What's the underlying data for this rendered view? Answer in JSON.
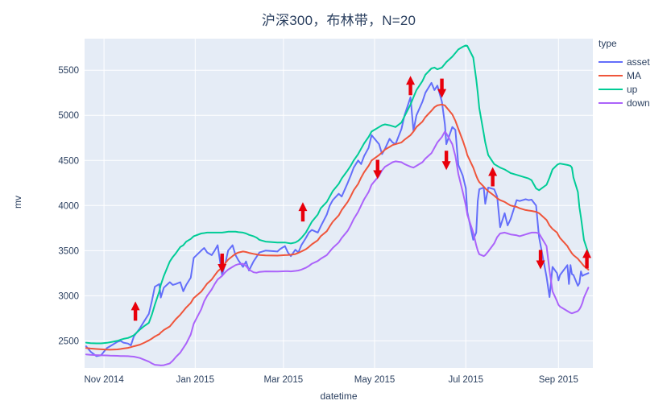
{
  "chart_data": {
    "type": "line",
    "title": "沪深300，布林带，N=20",
    "xlabel": "datetime",
    "ylabel": "mv",
    "legend_title": "type",
    "legend_position": "top-right",
    "grid": true,
    "plot_bgcolor": "#e5ecf6",
    "grid_color": "#ffffff",
    "text_color": "#2a3f5f",
    "arrow_color": "#e8000b",
    "ylim": [
      2200,
      5850
    ],
    "yticks": [
      2500,
      3000,
      3500,
      4000,
      4500,
      5000,
      5500
    ],
    "xlim": [
      "2014-10-19",
      "2015-09-24"
    ],
    "xticks": [
      {
        "date": "2014-11-01",
        "label": "Nov 2014"
      },
      {
        "date": "2015-01-01",
        "label": "Jan 2015"
      },
      {
        "date": "2015-03-01",
        "label": "Mar 2015"
      },
      {
        "date": "2015-05-01",
        "label": "May 2015"
      },
      {
        "date": "2015-07-01",
        "label": "Jul 2015"
      },
      {
        "date": "2015-09-01",
        "label": "Sep 2015"
      }
    ],
    "dates": [
      "2014-10-20",
      "2014-10-23",
      "2014-10-27",
      "2014-10-30",
      "2014-11-03",
      "2014-11-05",
      "2014-11-10",
      "2014-11-12",
      "2014-11-14",
      "2014-11-17",
      "2014-11-19",
      "2014-11-21",
      "2014-11-25",
      "2014-11-28",
      "2014-12-01",
      "2014-12-03",
      "2014-12-05",
      "2014-12-08",
      "2014-12-09",
      "2014-12-11",
      "2014-12-15",
      "2014-12-17",
      "2014-12-19",
      "2014-12-22",
      "2014-12-24",
      "2014-12-26",
      "2014-12-29",
      "2014-12-31",
      "2015-01-05",
      "2015-01-07",
      "2015-01-09",
      "2015-01-12",
      "2015-01-14",
      "2015-01-16",
      "2015-01-19",
      "2015-01-21",
      "2015-01-23",
      "2015-01-26",
      "2015-01-28",
      "2015-01-30",
      "2015-02-02",
      "2015-02-04",
      "2015-02-06",
      "2015-02-09",
      "2015-02-11",
      "2015-02-13",
      "2015-02-17",
      "2015-02-25",
      "2015-02-27",
      "2015-03-02",
      "2015-03-04",
      "2015-03-06",
      "2015-03-09",
      "2015-03-11",
      "2015-03-13",
      "2015-03-16",
      "2015-03-18",
      "2015-03-20",
      "2015-03-24",
      "2015-03-26",
      "2015-03-30",
      "2015-04-01",
      "2015-04-03",
      "2015-04-07",
      "2015-04-09",
      "2015-04-13",
      "2015-04-15",
      "2015-04-17",
      "2015-04-20",
      "2015-04-22",
      "2015-04-24",
      "2015-04-27",
      "2015-04-29",
      "2015-05-04",
      "2015-05-06",
      "2015-05-08",
      "2015-05-11",
      "2015-05-13",
      "2015-05-15",
      "2015-05-19",
      "2015-05-21",
      "2015-05-25",
      "2015-05-27",
      "2015-05-29",
      "2015-06-02",
      "2015-06-04",
      "2015-06-08",
      "2015-06-10",
      "2015-06-12",
      "2015-06-15",
      "2015-06-17",
      "2015-06-18",
      "2015-06-22",
      "2015-06-24",
      "2015-06-26",
      "2015-06-29",
      "2015-07-01",
      "2015-07-02",
      "2015-07-06",
      "2015-07-08",
      "2015-07-09",
      "2015-07-10",
      "2015-07-13",
      "2015-07-14",
      "2015-07-16",
      "2015-07-20",
      "2015-07-22",
      "2015-07-24",
      "2015-07-27",
      "2015-07-29",
      "2015-07-31",
      "2015-08-04",
      "2015-08-06",
      "2015-08-10",
      "2015-08-12",
      "2015-08-14",
      "2015-08-17",
      "2015-08-19",
      "2015-08-24",
      "2015-08-26",
      "2015-08-28",
      "2015-08-31",
      "2015-09-01",
      "2015-09-02",
      "2015-09-07",
      "2015-09-08",
      "2015-09-09",
      "2015-09-10",
      "2015-09-11",
      "2015-09-14",
      "2015-09-15",
      "2015-09-16",
      "2015-09-17",
      "2015-09-18",
      "2015-09-21"
    ],
    "series": [
      {
        "name": "asset",
        "color": "#636efa",
        "values": [
          2440,
          2380,
          2330,
          2340,
          2420,
          2440,
          2490,
          2500,
          2480,
          2470,
          2450,
          2550,
          2640,
          2720,
          2800,
          2940,
          3100,
          3130,
          2980,
          3090,
          3150,
          3120,
          3130,
          3150,
          3050,
          3120,
          3200,
          3420,
          3500,
          3530,
          3480,
          3450,
          3500,
          3560,
          3230,
          3350,
          3500,
          3560,
          3450,
          3390,
          3320,
          3380,
          3280,
          3380,
          3430,
          3480,
          3500,
          3490,
          3520,
          3550,
          3480,
          3440,
          3510,
          3480,
          3560,
          3640,
          3700,
          3730,
          3700,
          3770,
          3900,
          4000,
          4060,
          4130,
          4100,
          4250,
          4330,
          4420,
          4500,
          4460,
          4550,
          4640,
          4780,
          4680,
          4570,
          4630,
          4740,
          4700,
          4680,
          4850,
          5000,
          5200,
          4830,
          5000,
          5150,
          5250,
          5360,
          5280,
          5330,
          5150,
          4900,
          4680,
          4870,
          4840,
          4450,
          4330,
          4190,
          3930,
          3620,
          3700,
          4050,
          4180,
          4200,
          4020,
          4200,
          4180,
          4100,
          3760,
          3915,
          3780,
          3850,
          4060,
          4050,
          4070,
          4060,
          4065,
          4000,
          3650,
          3210,
          2985,
          3320,
          3250,
          3170,
          3230,
          3340,
          3130,
          3340,
          3240,
          3230,
          3110,
          3140,
          3270,
          3220,
          3230,
          3250
        ]
      },
      {
        "name": "MA",
        "color": "#ef553b",
        "values": [
          2420,
          2415,
          2410,
          2406,
          2403,
          2402,
          2405,
          2410,
          2415,
          2422,
          2430,
          2440,
          2458,
          2480,
          2505,
          2525,
          2548,
          2575,
          2592,
          2620,
          2660,
          2700,
          2740,
          2790,
          2830,
          2870,
          2920,
          2975,
          3045,
          3090,
          3135,
          3180,
          3225,
          3270,
          3315,
          3360,
          3400,
          3440,
          3465,
          3480,
          3490,
          3485,
          3475,
          3465,
          3458,
          3452,
          3448,
          3445,
          3448,
          3450,
          3452,
          3455,
          3462,
          3475,
          3490,
          3515,
          3540,
          3570,
          3615,
          3660,
          3715,
          3770,
          3820,
          3890,
          3950,
          4040,
          4100,
          4170,
          4240,
          4310,
          4370,
          4440,
          4500,
          4560,
          4590,
          4620,
          4650,
          4670,
          4680,
          4700,
          4730,
          4780,
          4820,
          4870,
          4930,
          4980,
          5050,
          5090,
          5110,
          5120,
          5110,
          5090,
          5010,
          4940,
          4850,
          4720,
          4620,
          4560,
          4420,
          4330,
          4290,
          4260,
          4210,
          4190,
          4160,
          4110,
          4080,
          4060,
          4040,
          4020,
          4000,
          3985,
          3970,
          3950,
          3945,
          3940,
          3930,
          3915,
          3840,
          3780,
          3740,
          3700,
          3670,
          3640,
          3550,
          3520,
          3495,
          3470,
          3450,
          3410,
          3390,
          3370,
          3350,
          3330,
          3290
        ]
      },
      {
        "name": "up",
        "color": "#00cc96",
        "values": [
          2480,
          2475,
          2472,
          2472,
          2478,
          2485,
          2500,
          2512,
          2522,
          2532,
          2545,
          2562,
          2625,
          2665,
          2700,
          2790,
          2900,
          3050,
          3120,
          3220,
          3380,
          3430,
          3470,
          3540,
          3560,
          3600,
          3630,
          3660,
          3690,
          3695,
          3700,
          3700,
          3700,
          3700,
          3700,
          3705,
          3710,
          3710,
          3710,
          3705,
          3700,
          3690,
          3675,
          3660,
          3645,
          3620,
          3600,
          3590,
          3590,
          3590,
          3585,
          3580,
          3590,
          3610,
          3640,
          3700,
          3760,
          3820,
          3900,
          3970,
          4040,
          4100,
          4160,
          4240,
          4300,
          4390,
          4440,
          4500,
          4570,
          4630,
          4690,
          4760,
          4820,
          4870,
          4890,
          4900,
          4890,
          4880,
          4870,
          4920,
          4990,
          5120,
          5200,
          5280,
          5380,
          5450,
          5520,
          5530,
          5510,
          5530,
          5570,
          5590,
          5650,
          5690,
          5730,
          5760,
          5775,
          5770,
          5640,
          5400,
          5250,
          5080,
          4800,
          4700,
          4560,
          4460,
          4440,
          4420,
          4400,
          4380,
          4360,
          4340,
          4330,
          4310,
          4300,
          4280,
          4190,
          4170,
          4230,
          4310,
          4400,
          4450,
          4460,
          4465,
          4450,
          4445,
          4440,
          4420,
          4310,
          4150,
          3980,
          3870,
          3750,
          3620,
          3470
        ]
      },
      {
        "name": "down",
        "color": "#ab63fa",
        "values": [
          2350,
          2345,
          2342,
          2340,
          2338,
          2336,
          2334,
          2332,
          2332,
          2330,
          2328,
          2325,
          2310,
          2290,
          2270,
          2250,
          2235,
          2230,
          2228,
          2230,
          2250,
          2280,
          2320,
          2370,
          2420,
          2470,
          2570,
          2690,
          2850,
          2940,
          3000,
          3070,
          3130,
          3180,
          3220,
          3260,
          3290,
          3320,
          3340,
          3350,
          3355,
          3330,
          3290,
          3260,
          3255,
          3265,
          3270,
          3268,
          3270,
          3272,
          3272,
          3270,
          3275,
          3280,
          3290,
          3310,
          3330,
          3355,
          3385,
          3410,
          3450,
          3490,
          3530,
          3590,
          3640,
          3720,
          3780,
          3850,
          3930,
          4000,
          4070,
          4150,
          4230,
          4330,
          4390,
          4430,
          4460,
          4480,
          4490,
          4480,
          4460,
          4430,
          4420,
          4440,
          4480,
          4520,
          4580,
          4640,
          4700,
          4760,
          4820,
          4800,
          4680,
          4550,
          4350,
          4150,
          4000,
          3900,
          3700,
          3560,
          3500,
          3460,
          3440,
          3450,
          3490,
          3580,
          3650,
          3690,
          3700,
          3690,
          3680,
          3670,
          3660,
          3680,
          3690,
          3700,
          3700,
          3690,
          3550,
          3280,
          3050,
          2940,
          2900,
          2880,
          2830,
          2820,
          2810,
          2805,
          2810,
          2830,
          2850,
          2880,
          2920,
          2980,
          3090
        ]
      }
    ],
    "annotations": {
      "arrows": [
        {
          "date": "2014-11-22",
          "value": 2830,
          "direction": "up"
        },
        {
          "date": "2015-01-19",
          "value": 3360,
          "direction": "down"
        },
        {
          "date": "2015-03-14",
          "value": 3930,
          "direction": "up"
        },
        {
          "date": "2015-05-03",
          "value": 4400,
          "direction": "down"
        },
        {
          "date": "2015-05-25",
          "value": 5330,
          "direction": "up"
        },
        {
          "date": "2015-06-15",
          "value": 5300,
          "direction": "down"
        },
        {
          "date": "2015-06-18",
          "value": 4500,
          "direction": "down"
        },
        {
          "date": "2015-07-19",
          "value": 4320,
          "direction": "up"
        },
        {
          "date": "2015-08-20",
          "value": 3400,
          "direction": "down"
        },
        {
          "date": "2015-09-20",
          "value": 3410,
          "direction": "up"
        }
      ]
    }
  }
}
